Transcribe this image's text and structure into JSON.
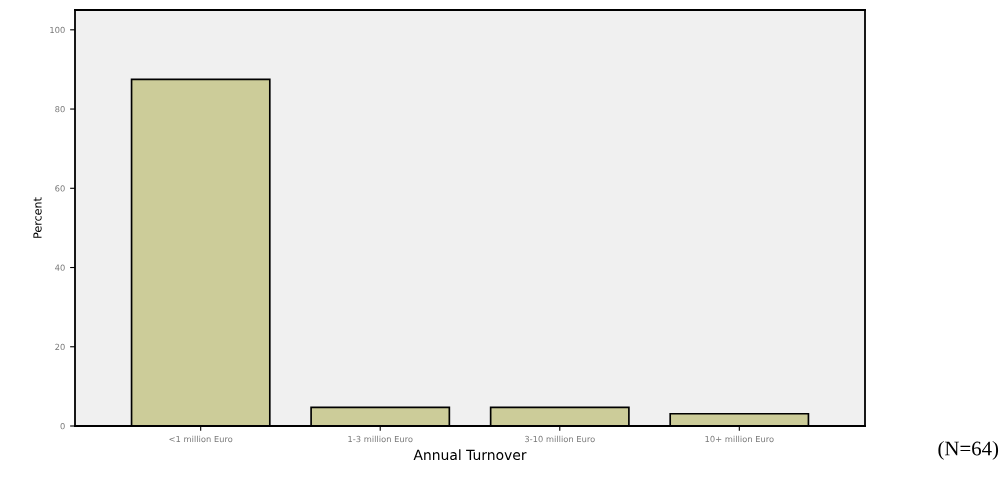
{
  "chart_data": {
    "type": "bar",
    "xlabel": "Annual Turnover",
    "ylabel": "Percent",
    "categories": [
      "<1 million Euro",
      "1-3 million Euro",
      "3-10 million Euro",
      "10+ million Euro"
    ],
    "series": [
      {
        "color": "#cccc99",
        "values": [
          87.5,
          4.7,
          4.7,
          3.1
        ]
      }
    ],
    "ylim": [
      0,
      105
    ],
    "yticks": [
      0,
      20,
      40,
      60,
      80,
      100
    ],
    "grid": false,
    "annotations": [
      "(N=64)"
    ]
  }
}
